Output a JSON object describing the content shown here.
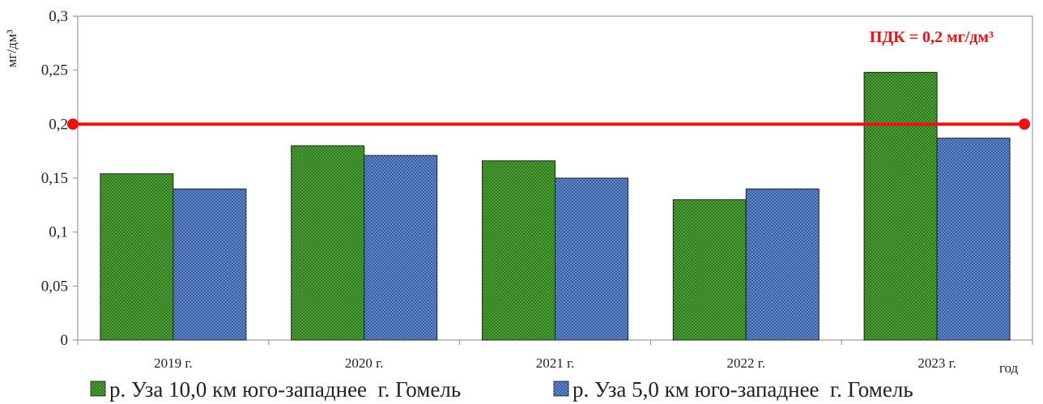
{
  "chart_data": {
    "type": "bar",
    "categories": [
      "2019 г.",
      "2020 г.",
      "2021 г.",
      "2022 г.",
      "2023 г."
    ],
    "series": [
      {
        "name": "р. Уза 10,0 км юго-западнее  г. Гомель",
        "values": [
          0.154,
          0.18,
          0.166,
          0.13,
          0.248
        ],
        "color": "#2e7d1e"
      },
      {
        "name": "р. Уза 5,0 км юго-западнее  г. Гомель",
        "values": [
          0.14,
          0.171,
          0.15,
          0.14,
          0.187
        ],
        "color": "#3a62a8"
      }
    ],
    "ylabel": "мг/дм³",
    "xlabel": "год",
    "ylim": [
      0,
      0.3
    ],
    "yticks": [
      0,
      0.05,
      0.1,
      0.15,
      0.2,
      0.25,
      0.3
    ],
    "ytick_labels": [
      "0",
      "0,05",
      "0,1",
      "0,15",
      "0,2",
      "0,25",
      "0,3"
    ],
    "reference_line": {
      "value": 0.2,
      "label": "ПДК = 0,2 мг/дм³",
      "color": "#ee1111"
    },
    "grid": false,
    "legend": "bottom"
  }
}
